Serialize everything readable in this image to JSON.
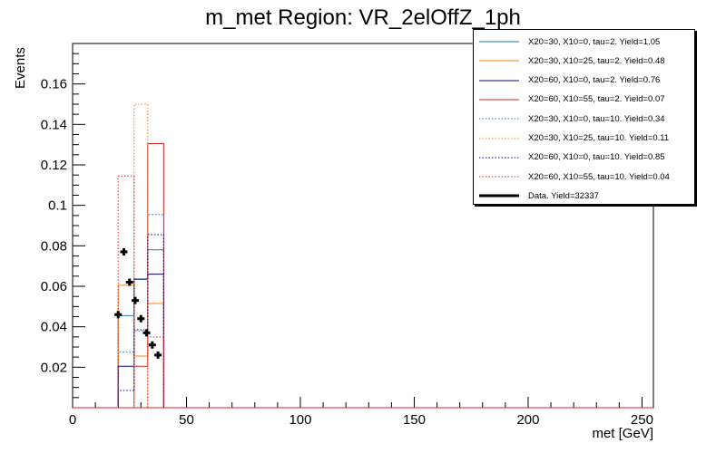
{
  "chart_data": {
    "type": "histogram",
    "title": "m_met Region: VR_2elOffZ_1ph",
    "xlabel": "met [GeV]",
    "ylabel": "Events",
    "xlim": [
      0,
      255
    ],
    "ylim": [
      0,
      0.18
    ],
    "x_ticks": [
      0,
      50,
      100,
      150,
      200,
      250
    ],
    "y_ticks": [
      0.02,
      0.04,
      0.06,
      0.08,
      0.1,
      0.12,
      0.14,
      0.16
    ],
    "bin_edges": [
      20,
      27,
      33,
      40
    ],
    "series": [
      {
        "name": "X20=30, X10=0, tau=2. Yield=1.05",
        "color": "#1f77b4",
        "style": "solid",
        "values": [
          0.0455,
          0.0635,
          0.078
        ]
      },
      {
        "name": "X20=30, X10=25, tau=2. Yield=0.48",
        "color": "#ff7f0e",
        "style": "solid",
        "values": [
          0.0605,
          0.0255,
          0.0515
        ]
      },
      {
        "name": "X20=60, X10=0, tau=2. Yield=0.76",
        "color": "#000080",
        "style": "solid",
        "values": [
          0.0205,
          0.0635,
          0.066
        ]
      },
      {
        "name": "X20=60, X10=55, tau=2. Yield=0.07",
        "color": "#d62728",
        "style": "solid",
        "values": [
          0.0,
          0.0205,
          0.1305
        ]
      },
      {
        "name": "X20=30, X10=0, tau=10. Yield=0.34",
        "color": "#1f77b4",
        "style": "dotted",
        "values": [
          0.0275,
          0.038,
          0.0955
        ]
      },
      {
        "name": "X20=30, X10=25, tau=10. Yield=0.11",
        "color": "#ff7f0e",
        "style": "dotted",
        "values": [
          0.0,
          0.15,
          0.0
        ]
      },
      {
        "name": "X20=60, X10=0, tau=10. Yield=0.85",
        "color": "#000080",
        "style": "dotted",
        "values": [
          0.0085,
          0.0385,
          0.0855
        ]
      },
      {
        "name": "X20=60, X10=55, tau=10. Yield=0.04",
        "color": "#d62728",
        "style": "dotted",
        "values": [
          0.1145,
          0.0,
          0.035
        ]
      }
    ],
    "data_points": {
      "name": "Data. Yield=32337",
      "color": "#000000",
      "x": [
        20,
        22.5,
        25,
        27.5,
        30,
        32.5,
        35,
        37.5
      ],
      "y": [
        0.046,
        0.077,
        0.062,
        0.053,
        0.044,
        0.037,
        0.031,
        0.026
      ]
    }
  }
}
